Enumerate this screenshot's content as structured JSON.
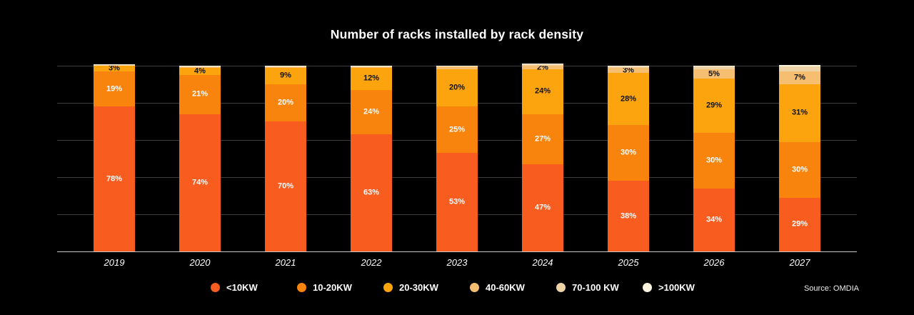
{
  "title": "Number of racks installed by rack density",
  "source": "Source: OMDIA",
  "chart_data": {
    "type": "bar",
    "stacked": true,
    "unit": "percent",
    "title": "Number of racks installed by rack density",
    "categories": [
      "2019",
      "2020",
      "2021",
      "2022",
      "2023",
      "2024",
      "2025",
      "2026",
      "2027"
    ],
    "series": [
      {
        "name": "<10KW",
        "color": "#F85C1F",
        "label_color": "#FFFFFF",
        "values": [
          78,
          74,
          70,
          63,
          53,
          47,
          38,
          34,
          29
        ],
        "labels": [
          "78%",
          "74%",
          "70%",
          "63%",
          "53%",
          "47%",
          "38%",
          "34%",
          "29%"
        ]
      },
      {
        "name": "10-20KW",
        "color": "#F8830D",
        "label_color": "#FFFFFF",
        "values": [
          19,
          21,
          20,
          24,
          25,
          27,
          30,
          30,
          30
        ],
        "labels": [
          "19%",
          "21%",
          "20%",
          "24%",
          "25%",
          "27%",
          "30%",
          "30%",
          "30%"
        ]
      },
      {
        "name": "20-30KW",
        "color": "#FCA40D",
        "label_color": "#111111",
        "values": [
          3,
          4,
          9,
          12,
          20,
          24,
          28,
          29,
          31
        ],
        "labels": [
          "3%",
          "4%",
          "9%",
          "12%",
          "20%",
          "24%",
          "28%",
          "29%",
          "31%"
        ]
      },
      {
        "name": "40-60KW",
        "color": "#F6BE70",
        "label_color": "#111111",
        "values": [
          0,
          0.4,
          0.4,
          0.4,
          1.5,
          2,
          3,
          5,
          7
        ],
        "labels": [
          null,
          null,
          null,
          null,
          null,
          "2%",
          "3%",
          "5%",
          "7%"
        ]
      },
      {
        "name": "70-100 KW",
        "color": "#EDD3A6",
        "label_color": "#111111",
        "values": [
          0.5,
          0.4,
          0.4,
          0.4,
          0.5,
          0.8,
          0.8,
          1.6,
          2.5
        ],
        "labels": [
          null,
          null,
          null,
          null,
          null,
          null,
          null,
          null,
          null
        ]
      },
      {
        "name": ">100KW",
        "color": "#FBF5E0",
        "label_color": "#111111",
        "values": [
          0.3,
          0.2,
          0.2,
          0.2,
          0.2,
          0.2,
          0.2,
          0.4,
          1
        ],
        "labels": [
          null,
          null,
          null,
          null,
          null,
          null,
          null,
          null,
          null
        ]
      }
    ],
    "ylim": [
      0,
      100
    ],
    "gridlines_percent": [
      20,
      40,
      60,
      80,
      100
    ],
    "grid_on": true,
    "legend_position": "bottom"
  },
  "legend": {
    "items": [
      {
        "label": "<10KW",
        "color": "#F85C1F"
      },
      {
        "label": "10-20KW",
        "color": "#F8830D"
      },
      {
        "label": "20-30KW",
        "color": "#FCA40D"
      },
      {
        "label": "40-60KW",
        "color": "#F6BE70"
      },
      {
        "label": "70-100 KW",
        "color": "#EDD3A6"
      },
      {
        "label": ">100KW",
        "color": "#FBF5E0"
      }
    ]
  }
}
